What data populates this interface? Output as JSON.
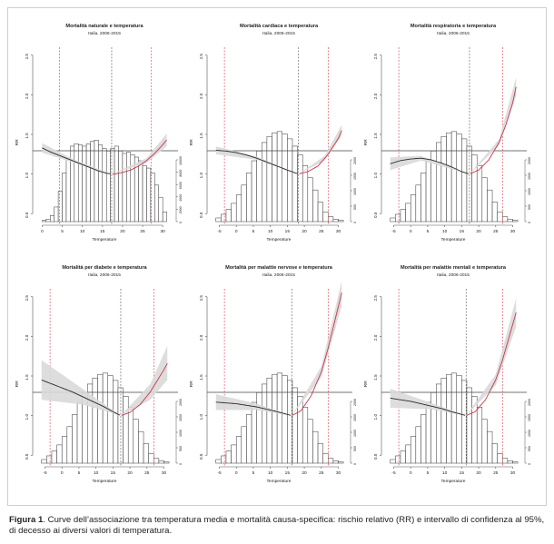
{
  "chart_data": [
    {
      "type": "line",
      "title": "Mortalità naturale e temperatura",
      "subtitle": "Italia, 2006-2015",
      "xlabel": "Temperature",
      "ylabel": "RR",
      "xlim": [
        -1,
        32
      ],
      "ylim": [
        0.4,
        2.6
      ],
      "x_ticks": [
        0,
        5,
        10,
        15,
        20,
        25,
        30
      ],
      "y_ticks": [
        0.5,
        1.0,
        1.5,
        2.0,
        2.5
      ],
      "reference_lines": {
        "cold": 4.3,
        "mmt": 17.3,
        "hot": 27.2
      },
      "series": [
        {
          "x": [
            0,
            2,
            4,
            6,
            8,
            10,
            12,
            14,
            16,
            17.3,
            18,
            20,
            22,
            24,
            26,
            28,
            30,
            31
          ],
          "values": [
            1.33,
            1.28,
            1.24,
            1.2,
            1.16,
            1.12,
            1.08,
            1.04,
            1.01,
            1.0,
            1.0,
            1.02,
            1.05,
            1.1,
            1.17,
            1.26,
            1.37,
            1.43
          ]
        }
      ],
      "confidence_band": {
        "x": [
          0,
          8,
          17.3,
          26,
          31
        ],
        "lower": [
          1.27,
          1.14,
          1.0,
          1.14,
          1.35
        ],
        "upper": [
          1.39,
          1.18,
          1.0,
          1.2,
          1.51
        ]
      },
      "histogram": {
        "bin_start": 0,
        "bin_width": 1,
        "values": [
          0.01,
          0.02,
          0.05,
          0.12,
          0.25,
          0.4,
          0.52,
          0.62,
          0.64,
          0.63,
          0.62,
          0.64,
          0.66,
          0.67,
          0.63,
          0.6,
          0.58,
          0.6,
          0.62,
          0.58,
          0.56,
          0.57,
          0.55,
          0.53,
          0.5,
          0.46,
          0.44,
          0.4,
          0.3,
          0.2,
          0.08
        ]
      },
      "histogram_axis_ticks": [
        "0",
        "2000",
        "4000",
        "6000",
        "8000",
        "10000"
      ]
    },
    {
      "type": "line",
      "title": "Mortalità cardiaca e temperatura",
      "subtitle": "Italia, 2006-2015",
      "xlabel": "Temperature",
      "ylabel": "RR",
      "xlim": [
        -7,
        32
      ],
      "ylim": [
        0.4,
        2.6
      ],
      "x_ticks": [
        -5,
        0,
        5,
        10,
        15,
        20,
        25,
        30
      ],
      "y_ticks": [
        0.5,
        1.0,
        1.5,
        2.0,
        2.5
      ],
      "reference_lines": {
        "cold": -3.5,
        "mmt": 18.3,
        "hot": 27
      },
      "series": [
        {
          "x": [
            -6,
            -3,
            0,
            3,
            6,
            9,
            12,
            15,
            18.3,
            21,
            24,
            27,
            30,
            31
          ],
          "values": [
            1.3,
            1.29,
            1.27,
            1.24,
            1.2,
            1.15,
            1.1,
            1.05,
            1.0,
            1.03,
            1.1,
            1.25,
            1.45,
            1.55
          ]
        }
      ],
      "confidence_band": {
        "x": [
          -6,
          6,
          18.3,
          26,
          31
        ],
        "lower": [
          1.25,
          1.18,
          1.0,
          1.17,
          1.48
        ],
        "upper": [
          1.35,
          1.22,
          1.0,
          1.23,
          1.62
        ]
      },
      "histogram": {
        "bin_start": -6,
        "bin_width": 1.5,
        "values": [
          0.03,
          0.06,
          0.1,
          0.15,
          0.22,
          0.3,
          0.4,
          0.5,
          0.58,
          0.65,
          0.7,
          0.73,
          0.74,
          0.72,
          0.68,
          0.62,
          0.55,
          0.46,
          0.36,
          0.26,
          0.16,
          0.08,
          0.04,
          0.02,
          0.01
        ]
      },
      "histogram_axis_ticks": [
        "0",
        "500",
        "1000",
        "1500",
        "2000"
      ]
    },
    {
      "type": "line",
      "title": "Mortalità respiratoria e temperatura",
      "subtitle": "Italia, 2006-2015",
      "xlabel": "Temperature",
      "ylabel": "RR",
      "xlim": [
        -7,
        32
      ],
      "ylim": [
        0.4,
        2.6
      ],
      "x_ticks": [
        -5,
        0,
        5,
        10,
        15,
        20,
        25,
        30
      ],
      "y_ticks": [
        0.5,
        1.0,
        1.5,
        2.0,
        2.5
      ],
      "reference_lines": {
        "cold": -3.5,
        "mmt": 17.3,
        "hot": 27
      },
      "series": [
        {
          "x": [
            -6,
            -3,
            0,
            3,
            6,
            9,
            12,
            15,
            17.3,
            20,
            23,
            26,
            28,
            30,
            31
          ],
          "values": [
            1.13,
            1.17,
            1.19,
            1.2,
            1.18,
            1.14,
            1.09,
            1.03,
            1.0,
            1.05,
            1.18,
            1.4,
            1.62,
            1.9,
            2.1
          ]
        }
      ],
      "confidence_band": {
        "x": [
          -6,
          3,
          17.3,
          26,
          31
        ],
        "lower": [
          1.05,
          1.17,
          1.0,
          1.36,
          1.98
        ],
        "upper": [
          1.21,
          1.23,
          1.0,
          1.44,
          2.22
        ]
      },
      "histogram": {
        "bin_start": -6,
        "bin_width": 1.5,
        "values": [
          0.03,
          0.06,
          0.1,
          0.15,
          0.22,
          0.3,
          0.4,
          0.5,
          0.58,
          0.65,
          0.7,
          0.73,
          0.74,
          0.72,
          0.68,
          0.62,
          0.55,
          0.46,
          0.36,
          0.26,
          0.16,
          0.08,
          0.04,
          0.02,
          0.01
        ]
      },
      "histogram_axis_ticks": [
        "0",
        "500",
        "1000",
        "1500",
        "2000"
      ]
    },
    {
      "type": "line",
      "title": "Mortalità per diabete e temperatura",
      "subtitle": "Italia, 2006-2015",
      "xlabel": "Temperature",
      "ylabel": "RR",
      "xlim": [
        -7,
        32
      ],
      "ylim": [
        0.4,
        2.6
      ],
      "x_ticks": [
        -5,
        0,
        5,
        10,
        15,
        20,
        25,
        30
      ],
      "y_ticks": [
        0.5,
        1.0,
        1.5,
        2.0,
        2.5
      ],
      "reference_lines": {
        "cold": -3.5,
        "mmt": 17.3,
        "hot": 27
      },
      "series": [
        {
          "x": [
            -6,
            -3,
            0,
            3,
            6,
            9,
            12,
            15,
            17.3,
            20,
            23,
            26,
            28,
            30,
            31
          ],
          "values": [
            1.45,
            1.4,
            1.35,
            1.3,
            1.24,
            1.18,
            1.12,
            1.05,
            1.0,
            1.04,
            1.14,
            1.3,
            1.44,
            1.58,
            1.66
          ]
        }
      ],
      "confidence_band": {
        "x": [
          -6,
          6,
          17.3,
          26,
          31
        ],
        "lower": [
          1.2,
          1.14,
          1.0,
          1.2,
          1.45
        ],
        "upper": [
          1.7,
          1.34,
          1.0,
          1.4,
          1.88
        ]
      },
      "histogram": {
        "bin_start": -6,
        "bin_width": 1.5,
        "values": [
          0.03,
          0.06,
          0.1,
          0.15,
          0.22,
          0.3,
          0.4,
          0.5,
          0.58,
          0.65,
          0.7,
          0.73,
          0.74,
          0.72,
          0.68,
          0.62,
          0.55,
          0.46,
          0.36,
          0.26,
          0.16,
          0.08,
          0.04,
          0.02,
          0.01
        ]
      },
      "histogram_axis_ticks": [
        "0",
        "500",
        "1000",
        "1500",
        "2000"
      ]
    },
    {
      "type": "line",
      "title": "Mortalità per malattie nervose e temperatura",
      "subtitle": "Italia, 2006-2015",
      "xlabel": "Temperature",
      "ylabel": "RR",
      "xlim": [
        -7,
        32
      ],
      "ylim": [
        0.4,
        2.6
      ],
      "x_ticks": [
        -5,
        0,
        5,
        10,
        15,
        20,
        25,
        30
      ],
      "y_ticks": [
        0.5,
        1.0,
        1.5,
        2.0,
        2.5
      ],
      "reference_lines": {
        "cold": -3.5,
        "mmt": 16.3,
        "hot": 27
      },
      "series": [
        {
          "x": [
            -6,
            -3,
            0,
            3,
            6,
            9,
            12,
            16.3,
            19,
            22,
            25,
            27,
            29,
            31
          ],
          "values": [
            1.17,
            1.16,
            1.15,
            1.13,
            1.11,
            1.08,
            1.05,
            1.0,
            1.06,
            1.25,
            1.55,
            1.85,
            2.2,
            2.55
          ]
        }
      ],
      "confidence_band": {
        "x": [
          -6,
          6,
          16.3,
          25,
          31
        ],
        "lower": [
          1.07,
          1.07,
          1.0,
          1.48,
          2.38
        ],
        "upper": [
          1.27,
          1.15,
          1.0,
          1.62,
          2.7
        ]
      },
      "histogram": {
        "bin_start": -6,
        "bin_width": 1.5,
        "values": [
          0.03,
          0.06,
          0.1,
          0.15,
          0.22,
          0.3,
          0.4,
          0.5,
          0.58,
          0.65,
          0.7,
          0.73,
          0.74,
          0.72,
          0.68,
          0.62,
          0.55,
          0.46,
          0.36,
          0.26,
          0.16,
          0.08,
          0.04,
          0.02,
          0.01
        ]
      },
      "histogram_axis_ticks": [
        "0",
        "500",
        "1000",
        "1500",
        "2000"
      ]
    },
    {
      "type": "line",
      "title": "Mortalità per malattie mentali e temperatura",
      "subtitle": "Italia, 2006-2015",
      "xlabel": "Temperature",
      "ylabel": "RR",
      "xlim": [
        -7,
        32
      ],
      "ylim": [
        0.4,
        2.6
      ],
      "x_ticks": [
        -5,
        0,
        5,
        10,
        15,
        20,
        25,
        30
      ],
      "y_ticks": [
        0.5,
        1.0,
        1.5,
        2.0,
        2.5
      ],
      "reference_lines": {
        "cold": -3.5,
        "mmt": 16.3,
        "hot": 27
      },
      "series": [
        {
          "x": [
            -6,
            -3,
            0,
            3,
            6,
            9,
            12,
            16.3,
            19,
            22,
            25,
            27,
            29,
            31
          ],
          "values": [
            1.22,
            1.2,
            1.18,
            1.15,
            1.12,
            1.09,
            1.05,
            1.0,
            1.05,
            1.2,
            1.45,
            1.7,
            2.0,
            2.3
          ]
        }
      ],
      "confidence_band": {
        "x": [
          -6,
          6,
          16.3,
          25,
          31
        ],
        "lower": [
          1.1,
          1.08,
          1.0,
          1.38,
          2.12
        ],
        "upper": [
          1.34,
          1.16,
          1.0,
          1.52,
          2.48
        ]
      },
      "histogram": {
        "bin_start": -6,
        "bin_width": 1.5,
        "values": [
          0.03,
          0.06,
          0.1,
          0.15,
          0.22,
          0.3,
          0.4,
          0.5,
          0.58,
          0.65,
          0.7,
          0.73,
          0.74,
          0.72,
          0.68,
          0.62,
          0.55,
          0.46,
          0.36,
          0.26,
          0.16,
          0.08,
          0.04,
          0.02,
          0.01
        ]
      },
      "histogram_axis_ticks": [
        "0",
        "500",
        "1000",
        "1500",
        "2000"
      ]
    }
  ],
  "caption": {
    "label": "Figura 1",
    "text": ". Curve dell’associazione tra temperatura media e mortalità causa-specifica: rischio relativo (RR) e intervallo di confidenza al 95%, di decesso ai diversi valori di temperatura."
  },
  "colors": {
    "curve": "#2a2a2a",
    "hot_curve": "#c8384a",
    "band": "#d9d9d9",
    "cold_line": "#d6374a",
    "mmt_line": "#555555",
    "hot_line": "#d6374a",
    "bar_fill": "#ffffff",
    "bar_stroke": "#333333"
  }
}
